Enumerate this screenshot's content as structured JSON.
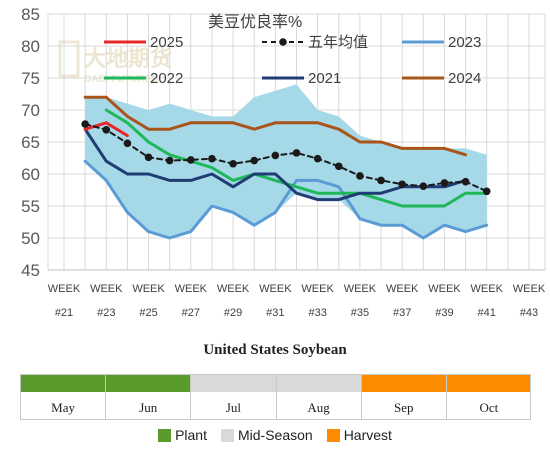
{
  "chart_data": {
    "type": "line",
    "title": "美豆优良率%",
    "ylim": [
      45,
      85
    ],
    "yticks": [
      "45",
      "50",
      "55",
      "60",
      "65",
      "70",
      "75",
      "80",
      "85"
    ],
    "x_week_labels": [
      {
        "top": "WEEK",
        "bottom": "#21"
      },
      {
        "top": "WEEK",
        "bottom": "#23"
      },
      {
        "top": "WEEK",
        "bottom": "#25"
      },
      {
        "top": "WEEK",
        "bottom": "#27"
      },
      {
        "top": "WEEK",
        "bottom": "#29"
      },
      {
        "top": "WEEK",
        "bottom": "#31"
      },
      {
        "top": "WEEK",
        "bottom": "#33"
      },
      {
        "top": "WEEK",
        "bottom": "#35"
      },
      {
        "top": "WEEK",
        "bottom": "#37"
      },
      {
        "top": "WEEK",
        "bottom": "#39"
      },
      {
        "top": "WEEK",
        "bottom": "#41"
      },
      {
        "top": "WEEK",
        "bottom": "#43"
      }
    ],
    "x_range": [
      21,
      43
    ],
    "range_band": {
      "x": [
        22,
        23,
        24,
        25,
        26,
        27,
        28,
        29,
        30,
        31,
        32,
        33,
        34,
        35,
        36,
        37,
        38,
        39,
        40,
        41
      ],
      "upper": [
        72,
        72,
        71,
        70,
        71,
        70,
        69,
        69,
        72,
        73,
        74,
        70,
        69,
        66,
        65,
        64,
        64,
        64,
        64,
        63
      ],
      "lower": [
        62,
        59,
        54,
        51,
        50,
        51,
        55,
        54,
        52,
        54,
        57,
        56,
        56,
        53,
        52,
        52,
        50,
        52,
        51,
        52
      ]
    },
    "series": [
      {
        "name": "2025",
        "color": "#e8262a",
        "width": 3,
        "marker": false,
        "dashed": false,
        "x": [
          22,
          23,
          24
        ],
        "values": [
          67,
          68,
          66
        ]
      },
      {
        "name": "五年均值",
        "color": "#1a1a1a",
        "width": 2,
        "marker": true,
        "dashed": true,
        "x": [
          22,
          23,
          24,
          25,
          26,
          27,
          28,
          29,
          30,
          31,
          32,
          33,
          34,
          35,
          36,
          37,
          38,
          39,
          40,
          41
        ],
        "values": [
          67.8,
          66.9,
          64.8,
          62.6,
          62.1,
          62.2,
          62.4,
          61.6,
          62.1,
          62.9,
          63.3,
          62.4,
          61.2,
          59.7,
          59.0,
          58.4,
          58.1,
          58.6,
          58.8,
          57.3
        ]
      },
      {
        "name": "2023",
        "color": "#5b9bd5",
        "width": 3,
        "marker": false,
        "dashed": false,
        "x": [
          22,
          23,
          24,
          25,
          26,
          27,
          28,
          29,
          30,
          31,
          32,
          33,
          34,
          35,
          36,
          37,
          38,
          39,
          40,
          41
        ],
        "values": [
          62,
          59,
          54,
          51,
          50,
          51,
          55,
          54,
          52,
          54,
          59,
          59,
          58,
          53,
          52,
          52,
          50,
          52,
          51,
          52
        ]
      },
      {
        "name": "2022",
        "color": "#1eb85a",
        "width": 3,
        "marker": false,
        "dashed": false,
        "x": [
          23,
          24,
          25,
          26,
          27,
          28,
          29,
          30,
          31,
          32,
          33,
          34,
          35,
          36,
          37,
          38,
          39,
          40,
          41
        ],
        "values": [
          70,
          68,
          65,
          63,
          62,
          61,
          59,
          60,
          59,
          58,
          57,
          57,
          57,
          56,
          55,
          55,
          55,
          57,
          57
        ]
      },
      {
        "name": "2021",
        "color": "#1f3c73",
        "width": 3,
        "marker": false,
        "dashed": false,
        "x": [
          22,
          23,
          24,
          25,
          26,
          27,
          28,
          29,
          30,
          31,
          32,
          33,
          34,
          35,
          36,
          37,
          38,
          39,
          40
        ],
        "values": [
          67,
          62,
          60,
          60,
          59,
          59,
          60,
          58,
          60,
          60,
          57,
          56,
          56,
          57,
          57,
          58,
          58,
          58,
          59
        ]
      },
      {
        "name": "2024",
        "color": "#a9541a",
        "width": 3,
        "marker": false,
        "dashed": false,
        "x": [
          22,
          23,
          24,
          25,
          26,
          27,
          28,
          29,
          30,
          31,
          32,
          33,
          34,
          35,
          36,
          37,
          38,
          39,
          40
        ],
        "values": [
          72,
          72,
          69,
          67,
          67,
          68,
          68,
          68,
          67,
          68,
          68,
          68,
          67,
          65,
          65,
          64,
          64,
          64,
          63
        ]
      }
    ],
    "band_color": "#a6d9e8",
    "grid_color": "#d9d9d9"
  },
  "watermark": {
    "cn": "大地期货",
    "en": "DADI FUTURES"
  },
  "calendar": {
    "title": "United States Soybean",
    "months": [
      "May",
      "Jun",
      "Jul",
      "Aug",
      "Sep",
      "Oct"
    ],
    "phases": [
      {
        "name": "Plant",
        "color": "#5a9c2c",
        "from": 0,
        "to": 2
      },
      {
        "name": "Mid-Season",
        "color": "#d9d9d9",
        "from": 2,
        "to": 4
      },
      {
        "name": "Harvest",
        "color": "#ff8c00",
        "from": 4,
        "to": 6
      }
    ]
  }
}
